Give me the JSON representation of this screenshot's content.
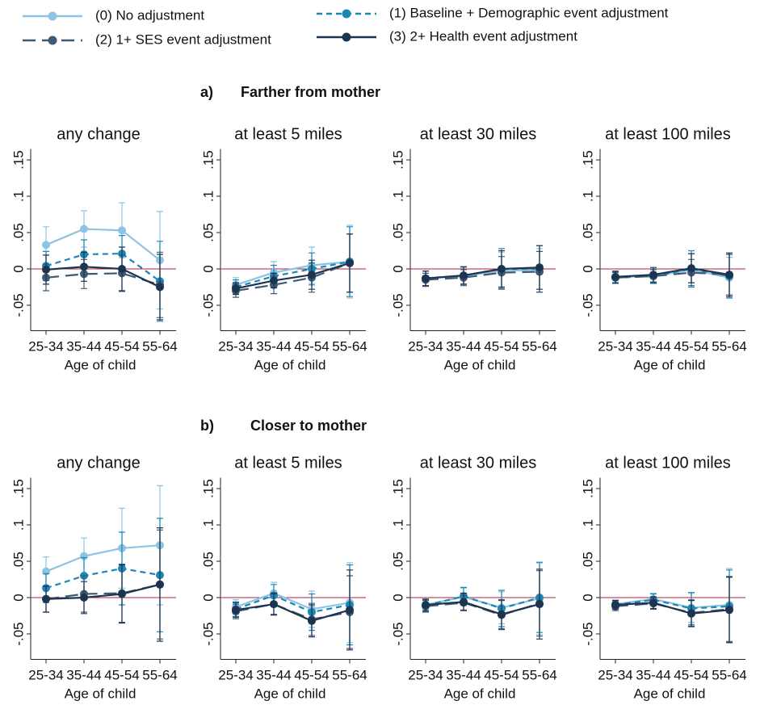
{
  "legend": [
    {
      "name": "(0) No adjustment",
      "color": "#8fc3e3",
      "line_style": "solid"
    },
    {
      "name": "(1) Baseline + Demographic event adjustment",
      "color": "#1b87b5",
      "line_style": "short-dash"
    },
    {
      "name": "(2) 1+ SES event adjustment",
      "color": "#3f5b73",
      "line_style": "long-dash"
    },
    {
      "name": "(3) 2+ Health event adjustment",
      "color": "#1d3451",
      "line_style": "solid"
    }
  ],
  "sections": [
    {
      "label": "a)",
      "title": "Farther from mother"
    },
    {
      "label": "b)",
      "title": "Closer to mother"
    }
  ],
  "chart_data": [
    {
      "type": "line",
      "title": "any change",
      "categories": [
        "25-34",
        "35-44",
        "45-54",
        "55-64"
      ],
      "x_label": "Age of child",
      "ylim": [
        -0.085,
        0.165
      ],
      "yticks": [
        {
          "value": -0.05,
          "label": "-.05"
        },
        0,
        {
          "value": 0.05,
          "label": ".05"
        },
        {
          "value": 0.1,
          "label": ".1"
        },
        {
          "value": 0.15,
          "label": ".15"
        }
      ],
      "hline": 0,
      "hline_color": "#b3213a",
      "series": [
        {
          "values": [
            0.033,
            0.055,
            0.053,
            0.012
          ],
          "errors": [
            0.025,
            0.025,
            0.038,
            0.067
          ]
        },
        {
          "values": [
            0.004,
            0.02,
            0.021,
            -0.017
          ],
          "errors": [
            0.02,
            0.02,
            0.025,
            0.055
          ]
        },
        {
          "values": [
            -0.012,
            -0.007,
            -0.006,
            -0.022
          ],
          "errors": [
            0.018,
            0.02,
            0.025,
            0.045
          ]
        },
        {
          "values": [
            -0.001,
            0.003,
            0.0,
            -0.025
          ],
          "errors": [
            0.02,
            0.02,
            0.03,
            0.045
          ]
        }
      ]
    },
    {
      "type": "line",
      "title": "at least 5 miles",
      "categories": [
        "25-34",
        "35-44",
        "45-54",
        "55-64"
      ],
      "x_label": "Age of child",
      "ylim": [
        -0.085,
        0.165
      ],
      "yticks": [
        {
          "value": -0.05,
          "label": "-.05"
        },
        0,
        {
          "value": 0.05,
          "label": ".05"
        },
        {
          "value": 0.1,
          "label": ".1"
        },
        {
          "value": 0.15,
          "label": ".15"
        }
      ],
      "hline": 0,
      "hline_color": "#b3213a",
      "series": [
        {
          "values": [
            -0.022,
            -0.005,
            0.005,
            0.01
          ],
          "errors": [
            0.01,
            0.015,
            0.025,
            0.05
          ]
        },
        {
          "values": [
            -0.025,
            -0.01,
            0.0,
            0.01
          ],
          "errors": [
            0.01,
            0.015,
            0.022,
            0.048
          ]
        },
        {
          "values": [
            -0.03,
            -0.022,
            -0.012,
            0.008
          ],
          "errors": [
            0.009,
            0.012,
            0.02,
            0.04
          ]
        },
        {
          "values": [
            -0.027,
            -0.016,
            -0.008,
            0.008
          ],
          "errors": [
            0.008,
            0.01,
            0.02,
            0.04
          ]
        }
      ]
    },
    {
      "type": "line",
      "title": "at least 30 miles",
      "categories": [
        "25-34",
        "35-44",
        "45-54",
        "55-64"
      ],
      "x_label": "Age of child",
      "ylim": [
        -0.085,
        0.165
      ],
      "yticks": [
        {
          "value": -0.05,
          "label": "-.05"
        },
        0,
        {
          "value": 0.05,
          "label": ".05"
        },
        {
          "value": 0.1,
          "label": ".1"
        },
        {
          "value": 0.15,
          "label": ".15"
        }
      ],
      "hline": 0,
      "hline_color": "#b3213a",
      "series": [
        {
          "values": [
            -0.013,
            -0.01,
            -0.002,
            -0.002
          ],
          "errors": [
            0.01,
            0.012,
            0.025,
            0.03
          ]
        },
        {
          "values": [
            -0.013,
            -0.009,
            0.0,
            0.0
          ],
          "errors": [
            0.01,
            0.012,
            0.028,
            0.032
          ]
        },
        {
          "values": [
            -0.015,
            -0.012,
            -0.005,
            -0.004
          ],
          "errors": [
            0.009,
            0.011,
            0.022,
            0.028
          ]
        },
        {
          "values": [
            -0.013,
            -0.009,
            0.0,
            0.002
          ],
          "errors": [
            0.01,
            0.012,
            0.025,
            0.03
          ]
        }
      ]
    },
    {
      "type": "line",
      "title": "at least 100 miles",
      "categories": [
        "25-34",
        "35-44",
        "45-54",
        "55-64"
      ],
      "x_label": "Age of child",
      "ylim": [
        -0.085,
        0.165
      ],
      "yticks": [
        {
          "value": -0.05,
          "label": "-.05"
        },
        0,
        {
          "value": 0.05,
          "label": ".05"
        },
        {
          "value": 0.1,
          "label": ".1"
        },
        {
          "value": 0.15,
          "label": ".15"
        }
      ],
      "hline": 0,
      "hline_color": "#b3213a",
      "series": [
        {
          "values": [
            -0.011,
            -0.01,
            -0.001,
            -0.012
          ],
          "errors": [
            0.008,
            0.01,
            0.022,
            0.028
          ]
        },
        {
          "values": [
            -0.012,
            -0.01,
            0.0,
            -0.01
          ],
          "errors": [
            0.008,
            0.01,
            0.025,
            0.03
          ]
        },
        {
          "values": [
            -0.012,
            -0.01,
            -0.005,
            -0.008
          ],
          "errors": [
            0.007,
            0.009,
            0.018,
            0.028
          ]
        },
        {
          "values": [
            -0.011,
            -0.008,
            0.001,
            -0.008
          ],
          "errors": [
            0.008,
            0.01,
            0.02,
            0.03
          ]
        }
      ]
    },
    {
      "type": "line",
      "title": "any change",
      "categories": [
        "25-34",
        "35-44",
        "45-54",
        "55-64"
      ],
      "x_label": "Age of child",
      "ylim": [
        -0.085,
        0.165
      ],
      "yticks": [
        {
          "value": -0.05,
          "label": "-.05"
        },
        0,
        {
          "value": 0.05,
          "label": ".05"
        },
        {
          "value": 0.1,
          "label": ".1"
        },
        {
          "value": 0.15,
          "label": ".15"
        }
      ],
      "hline": 0,
      "hline_color": "#b3213a",
      "series": [
        {
          "values": [
            0.036,
            0.057,
            0.068,
            0.072
          ],
          "errors": [
            0.02,
            0.025,
            0.055,
            0.082
          ]
        },
        {
          "values": [
            0.013,
            0.03,
            0.04,
            0.031
          ],
          "errors": [
            0.02,
            0.025,
            0.05,
            0.078
          ]
        },
        {
          "values": [
            -0.002,
            0.005,
            0.006,
            0.018
          ],
          "errors": [
            0.018,
            0.025,
            0.04,
            0.075
          ]
        },
        {
          "values": [
            -0.002,
            0.0,
            0.005,
            0.018
          ],
          "errors": [
            0.018,
            0.022,
            0.04,
            0.078
          ]
        }
      ]
    },
    {
      "type": "line",
      "title": "at least 5 miles",
      "categories": [
        "25-34",
        "35-44",
        "45-54",
        "55-64"
      ],
      "x_label": "Age of child",
      "ylim": [
        -0.085,
        0.165
      ],
      "yticks": [
        {
          "value": -0.05,
          "label": "-.05"
        },
        0,
        {
          "value": 0.05,
          "label": ".05"
        },
        {
          "value": 0.1,
          "label": ".1"
        },
        {
          "value": 0.15,
          "label": ".15"
        }
      ],
      "hline": 0,
      "hline_color": "#b3213a",
      "series": [
        {
          "values": [
            -0.013,
            0.006,
            -0.016,
            -0.007
          ],
          "errors": [
            0.01,
            0.015,
            0.025,
            0.055
          ]
        },
        {
          "values": [
            -0.016,
            0.003,
            -0.02,
            -0.01
          ],
          "errors": [
            0.01,
            0.015,
            0.025,
            0.055
          ]
        },
        {
          "values": [
            -0.019,
            -0.009,
            -0.03,
            -0.02
          ],
          "errors": [
            0.01,
            0.014,
            0.022,
            0.05
          ]
        },
        {
          "values": [
            -0.017,
            -0.009,
            -0.032,
            -0.017
          ],
          "errors": [
            0.01,
            0.015,
            0.022,
            0.055
          ]
        }
      ]
    },
    {
      "type": "line",
      "title": "at least 30 miles",
      "categories": [
        "25-34",
        "35-44",
        "45-54",
        "55-64"
      ],
      "x_label": "Age of child",
      "ylim": [
        -0.085,
        0.165
      ],
      "yticks": [
        {
          "value": -0.05,
          "label": "-.05"
        },
        0,
        {
          "value": 0.05,
          "label": ".05"
        },
        {
          "value": 0.1,
          "label": ".1"
        },
        {
          "value": 0.15,
          "label": ".15"
        }
      ],
      "hline": 0,
      "hline_color": "#b3213a",
      "series": [
        {
          "values": [
            -0.01,
            0.001,
            -0.014,
            -0.001
          ],
          "errors": [
            0.008,
            0.012,
            0.022,
            0.05
          ]
        },
        {
          "values": [
            -0.011,
            0.002,
            -0.015,
            0.0
          ],
          "errors": [
            0.008,
            0.012,
            0.025,
            0.048
          ]
        },
        {
          "values": [
            -0.012,
            -0.007,
            -0.024,
            -0.008
          ],
          "errors": [
            0.008,
            0.01,
            0.02,
            0.045
          ]
        },
        {
          "values": [
            -0.01,
            -0.006,
            -0.023,
            -0.009
          ],
          "errors": [
            0.008,
            0.012,
            0.02,
            0.048
          ]
        }
      ]
    },
    {
      "type": "line",
      "title": "at least 100 miles",
      "categories": [
        "25-34",
        "35-44",
        "45-54",
        "55-64"
      ],
      "x_label": "Age of child",
      "ylim": [
        -0.085,
        0.165
      ],
      "yticks": [
        {
          "value": -0.05,
          "label": "-.05"
        },
        0,
        {
          "value": 0.05,
          "label": ".05"
        },
        {
          "value": 0.1,
          "label": ".1"
        },
        {
          "value": 0.15,
          "label": ".15"
        }
      ],
      "hline": 0,
      "hline_color": "#b3213a",
      "series": [
        {
          "values": [
            -0.009,
            -0.002,
            -0.014,
            -0.01
          ],
          "errors": [
            0.006,
            0.008,
            0.02,
            0.05
          ]
        },
        {
          "values": [
            -0.01,
            -0.003,
            -0.015,
            -0.012
          ],
          "errors": [
            0.006,
            0.008,
            0.022,
            0.05
          ]
        },
        {
          "values": [
            -0.012,
            -0.008,
            -0.021,
            -0.016
          ],
          "errors": [
            0.006,
            0.008,
            0.018,
            0.045
          ]
        },
        {
          "values": [
            -0.01,
            -0.007,
            -0.022,
            -0.017
          ],
          "errors": [
            0.006,
            0.008,
            0.018,
            0.045
          ]
        }
      ]
    }
  ]
}
